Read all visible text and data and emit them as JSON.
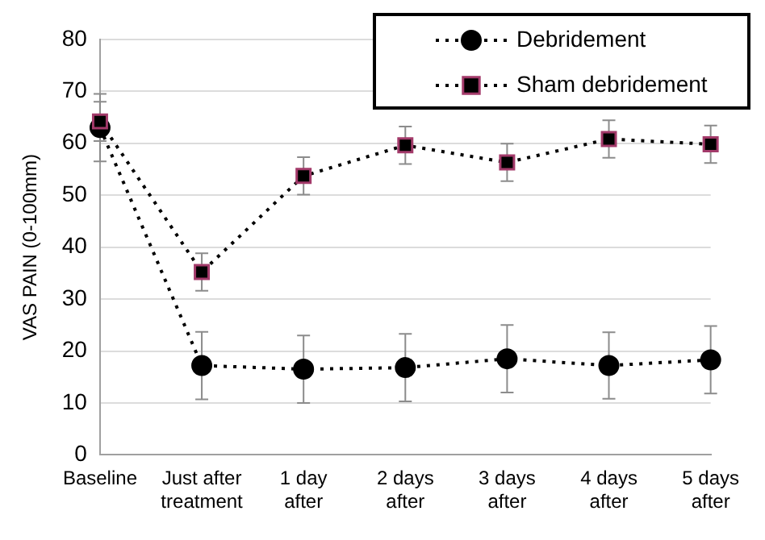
{
  "chart_data": {
    "type": "line",
    "ylabel": "VAS PAIN (0-100mm)",
    "categories": [
      "Baseline",
      "Just after treatment",
      "1 day after",
      "2 days after",
      "3 days after",
      "4 days after",
      "5 days after"
    ],
    "series": [
      {
        "name": "Debridement",
        "color": "#000000",
        "marker": "circle",
        "values": [
          63,
          17.2,
          16.5,
          16.8,
          18.5,
          17.2,
          18.3
        ],
        "errors": [
          6.5,
          6.5,
          6.5,
          6.5,
          6.5,
          6.4,
          6.5
        ]
      },
      {
        "name": "Sham debridement",
        "color": "#000000",
        "marker": "square",
        "values": [
          64.2,
          35.2,
          53.7,
          59.6,
          56.3,
          60.8,
          59.8
        ],
        "errors": [
          3.8,
          3.6,
          3.6,
          3.6,
          3.6,
          3.6,
          3.6
        ]
      }
    ],
    "ylim": [
      0,
      80
    ],
    "yticks": [
      0,
      10,
      20,
      30,
      40,
      50,
      60,
      70,
      80
    ],
    "grid": "y",
    "legend": "top right",
    "line_style": "dotted"
  }
}
